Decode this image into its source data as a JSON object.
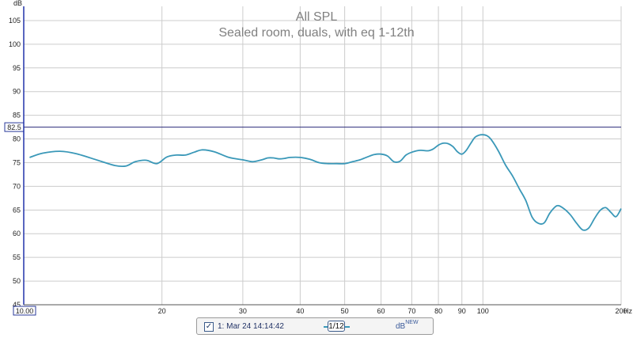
{
  "chart_data": {
    "type": "line",
    "title": "All SPL",
    "subtitle": "Sealed room, duals, with eq 1-12th",
    "y_unit_label": "dB",
    "x_unit_label": "Hz",
    "x_scale": "log",
    "xlim": [
      10,
      200
    ],
    "ylim": [
      45,
      108
    ],
    "grid": true,
    "x_ticks": [
      20,
      30,
      40,
      50,
      60,
      70,
      80,
      90,
      100,
      200
    ],
    "x_tick_labels": [
      "20",
      "30",
      "40",
      "50",
      "60",
      "70",
      "80",
      "90",
      "100",
      "200"
    ],
    "x_start_label": "10.00",
    "y_ticks": [
      45,
      50,
      55,
      60,
      65,
      70,
      75,
      80,
      85,
      90,
      95,
      100,
      105
    ],
    "y_tick_labels": [
      "45",
      "50",
      "55",
      "60",
      "65",
      "70",
      "75",
      "80",
      "85",
      "90",
      "95",
      "100",
      "105"
    ],
    "reference_line": {
      "value": 82.5,
      "label": "82.5"
    },
    "series": [
      {
        "color": "#3a98b8",
        "x": [
          10.3,
          11,
          12,
          13,
          14.5,
          15.8,
          16.7,
          17.5,
          18.5,
          19.5,
          20.5,
          21.5,
          22.5,
          23.5,
          24.5,
          26,
          28,
          30,
          31.5,
          33,
          34,
          35,
          36,
          37,
          38,
          40,
          42,
          44,
          46,
          48,
          50,
          52,
          54,
          56,
          58,
          60,
          62,
          64,
          66,
          68,
          70,
          73,
          76,
          78,
          80,
          82,
          84,
          86,
          88,
          90,
          92,
          94,
          96,
          98,
          100,
          102,
          104,
          108,
          112,
          116,
          120,
          124,
          128,
          132,
          136,
          140,
          145,
          150,
          155,
          160,
          165,
          170,
          175,
          180,
          185,
          190,
          195,
          200
        ],
        "y": [
          76.1,
          77,
          77.4,
          76.9,
          75.5,
          74.4,
          74.3,
          75.2,
          75.5,
          74.8,
          76.2,
          76.6,
          76.6,
          77.2,
          77.7,
          77.3,
          76.1,
          75.6,
          75.2,
          75.6,
          76,
          76,
          75.8,
          75.9,
          76.1,
          76.1,
          75.7,
          75,
          74.8,
          74.8,
          74.8,
          75.2,
          75.6,
          76.2,
          76.7,
          76.8,
          76.4,
          75.2,
          75.3,
          76.6,
          77.2,
          77.6,
          77.5,
          77.9,
          78.7,
          79.1,
          79,
          78.4,
          77.3,
          76.8,
          77.6,
          79,
          80.3,
          80.8,
          80.9,
          80.7,
          80,
          77.5,
          74.5,
          72.2,
          69.5,
          67,
          63.5,
          62.2,
          62.3,
          64.4,
          65.9,
          65.3,
          64,
          62.2,
          60.8,
          61.2,
          63.2,
          64.9,
          65.5,
          64.5,
          63.6,
          65.3
        ]
      }
    ]
  },
  "legend": {
    "checkbox_mark": "✓",
    "entry_label": "1: Mar 24 14:14:42",
    "smoothing_label": "1/12",
    "unit": "dB",
    "unit_superscript": "NEW"
  }
}
